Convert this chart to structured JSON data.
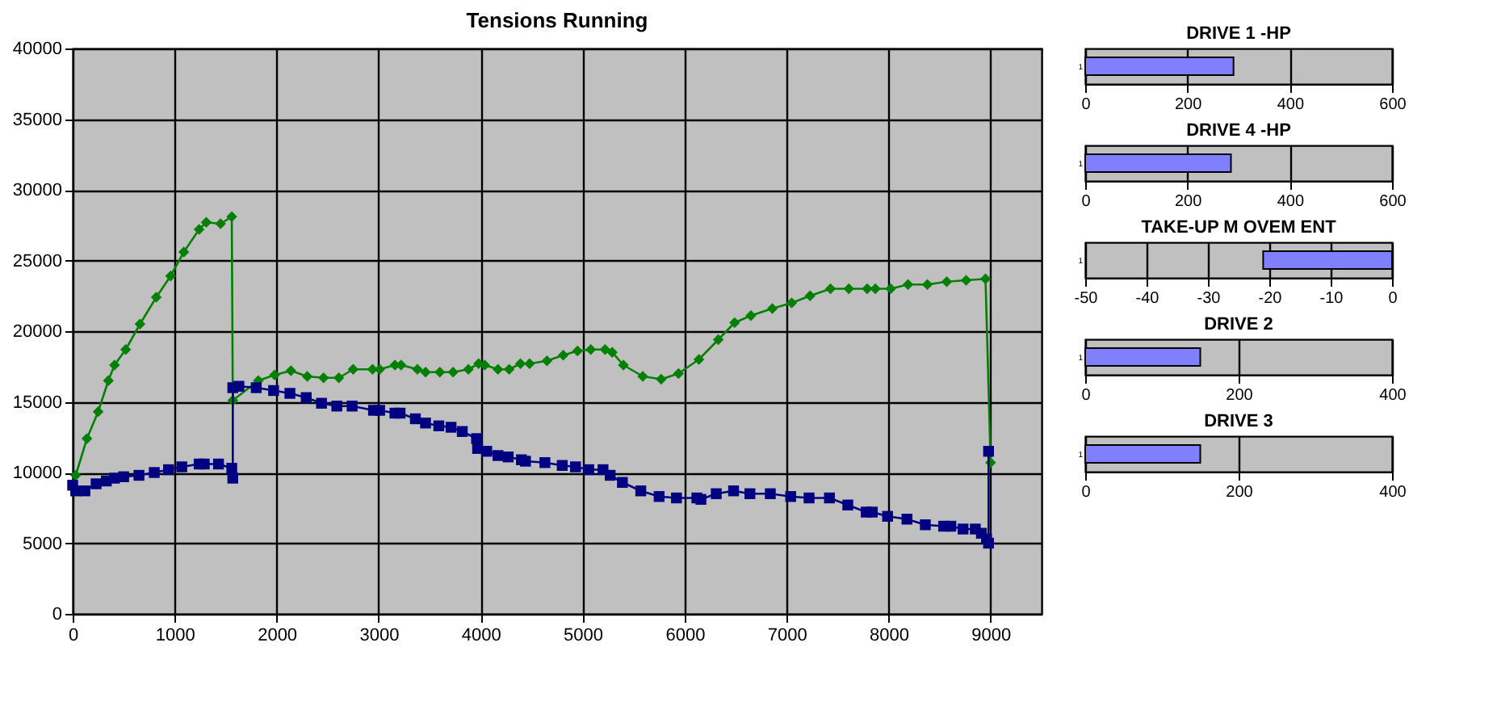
{
  "chart_data": [
    {
      "type": "line",
      "title": "Tensions Running",
      "xlim": [
        0,
        9500
      ],
      "xticks": [
        0,
        1000,
        2000,
        3000,
        4000,
        5000,
        6000,
        7000,
        8000,
        9000
      ],
      "ylim": [
        0,
        40000
      ],
      "yticks": [
        0,
        5000,
        10000,
        15000,
        20000,
        25000,
        30000,
        35000,
        40000
      ],
      "grid": true,
      "series": [
        {
          "color": "#008000",
          "marker": "diamond",
          "x": [
            30,
            140,
            250,
            350,
            410,
            520,
            660,
            820,
            960,
            1090,
            1240,
            1310,
            1450,
            1560,
            1570,
            1820,
            1980,
            2140,
            2300,
            2460,
            2610,
            2750,
            2940,
            3010,
            3160,
            3220,
            3380,
            3460,
            3600,
            3730,
            3880,
            3980,
            4040,
            4170,
            4280,
            4390,
            4480,
            4650,
            4810,
            4950,
            5080,
            5220,
            5290,
            5400,
            5590,
            5770,
            5940,
            6140,
            6330,
            6490,
            6650,
            6860,
            7050,
            7230,
            7430,
            7610,
            7790,
            7870,
            8020,
            8190,
            8380,
            8570,
            8760,
            8950,
            9000
          ],
          "values": [
            9800,
            12400,
            14300,
            16500,
            17600,
            18700,
            20500,
            22400,
            23900,
            25600,
            27200,
            27700,
            27600,
            28100,
            15100,
            16500,
            16900,
            17200,
            16800,
            16700,
            16700,
            17300,
            17300,
            17300,
            17600,
            17600,
            17300,
            17100,
            17100,
            17100,
            17300,
            17700,
            17600,
            17300,
            17300,
            17700,
            17700,
            17900,
            18300,
            18600,
            18700,
            18700,
            18500,
            17600,
            16800,
            16600,
            17000,
            18000,
            19400,
            20600,
            21100,
            21600,
            22000,
            22500,
            23000,
            23000,
            23000,
            23000,
            23000,
            23300,
            23300,
            23500,
            23600,
            23700,
            10700
          ]
        },
        {
          "color": "#000080",
          "marker": "square",
          "x": [
            0,
            30,
            120,
            230,
            330,
            410,
            500,
            650,
            800,
            940,
            1070,
            1240,
            1290,
            1430,
            1560,
            1570,
            1570,
            1630,
            1800,
            1970,
            2130,
            2290,
            2440,
            2590,
            2740,
            2950,
            3010,
            3160,
            3210,
            3360,
            3460,
            3590,
            3710,
            3820,
            3960,
            3970,
            4060,
            4170,
            4270,
            4400,
            4440,
            4630,
            4800,
            4930,
            5060,
            5200,
            5270,
            5390,
            5570,
            5750,
            5920,
            6120,
            6160,
            6310,
            6480,
            6640,
            6840,
            7040,
            7220,
            7420,
            7600,
            7780,
            7840,
            7990,
            8180,
            8360,
            8540,
            8610,
            8730,
            8850,
            8910,
            8960,
            8980,
            8980
          ],
          "values": [
            9100,
            8700,
            8700,
            9200,
            9400,
            9600,
            9700,
            9800,
            10000,
            10200,
            10400,
            10600,
            10600,
            10600,
            10300,
            9600,
            16000,
            16100,
            16000,
            15800,
            15600,
            15300,
            14900,
            14700,
            14700,
            14400,
            14400,
            14200,
            14200,
            13800,
            13500,
            13300,
            13200,
            12900,
            12400,
            11700,
            11500,
            11200,
            11100,
            10900,
            10800,
            10700,
            10500,
            10400,
            10200,
            10200,
            9800,
            9300,
            8700,
            8300,
            8200,
            8200,
            8100,
            8500,
            8700,
            8500,
            8500,
            8300,
            8200,
            8200,
            7700,
            7200,
            7200,
            6900,
            6700,
            6300,
            6200,
            6200,
            6000,
            6000,
            5700,
            5300,
            5000,
            11500
          ]
        }
      ]
    },
    {
      "type": "bar",
      "orientation": "horizontal",
      "title": "DRIVE 1 -HP",
      "categories": [
        "1"
      ],
      "values": [
        290
      ],
      "color": "#8080ff",
      "xlim": [
        0,
        600
      ],
      "xticks": [
        0,
        200,
        400,
        600
      ],
      "grid": "x"
    },
    {
      "type": "bar",
      "orientation": "horizontal",
      "title": "DRIVE 4 -HP",
      "categories": [
        "1"
      ],
      "values": [
        285
      ],
      "color": "#8080ff",
      "xlim": [
        0,
        600
      ],
      "xticks": [
        0,
        200,
        400,
        600
      ],
      "grid": "x"
    },
    {
      "type": "bar",
      "orientation": "horizontal",
      "title": "TAKE-UP M OVEM ENT",
      "categories": [
        "1"
      ],
      "values": [
        -21
      ],
      "color": "#8080ff",
      "xlim": [
        -50,
        0
      ],
      "xticks": [
        -50,
        -40,
        -30,
        -20,
        -10,
        0
      ],
      "grid": "x"
    },
    {
      "type": "bar",
      "orientation": "horizontal",
      "title": "DRIVE 2",
      "categories": [
        "1"
      ],
      "values": [
        150
      ],
      "color": "#8080ff",
      "xlim": [
        0,
        400
      ],
      "xticks": [
        0,
        200,
        400
      ],
      "grid": "x"
    },
    {
      "type": "bar",
      "orientation": "horizontal",
      "title": "DRIVE 3",
      "categories": [
        "1"
      ],
      "values": [
        150
      ],
      "color": "#8080ff",
      "xlim": [
        0,
        400
      ],
      "xticks": [
        0,
        200,
        400
      ],
      "grid": "x"
    }
  ]
}
